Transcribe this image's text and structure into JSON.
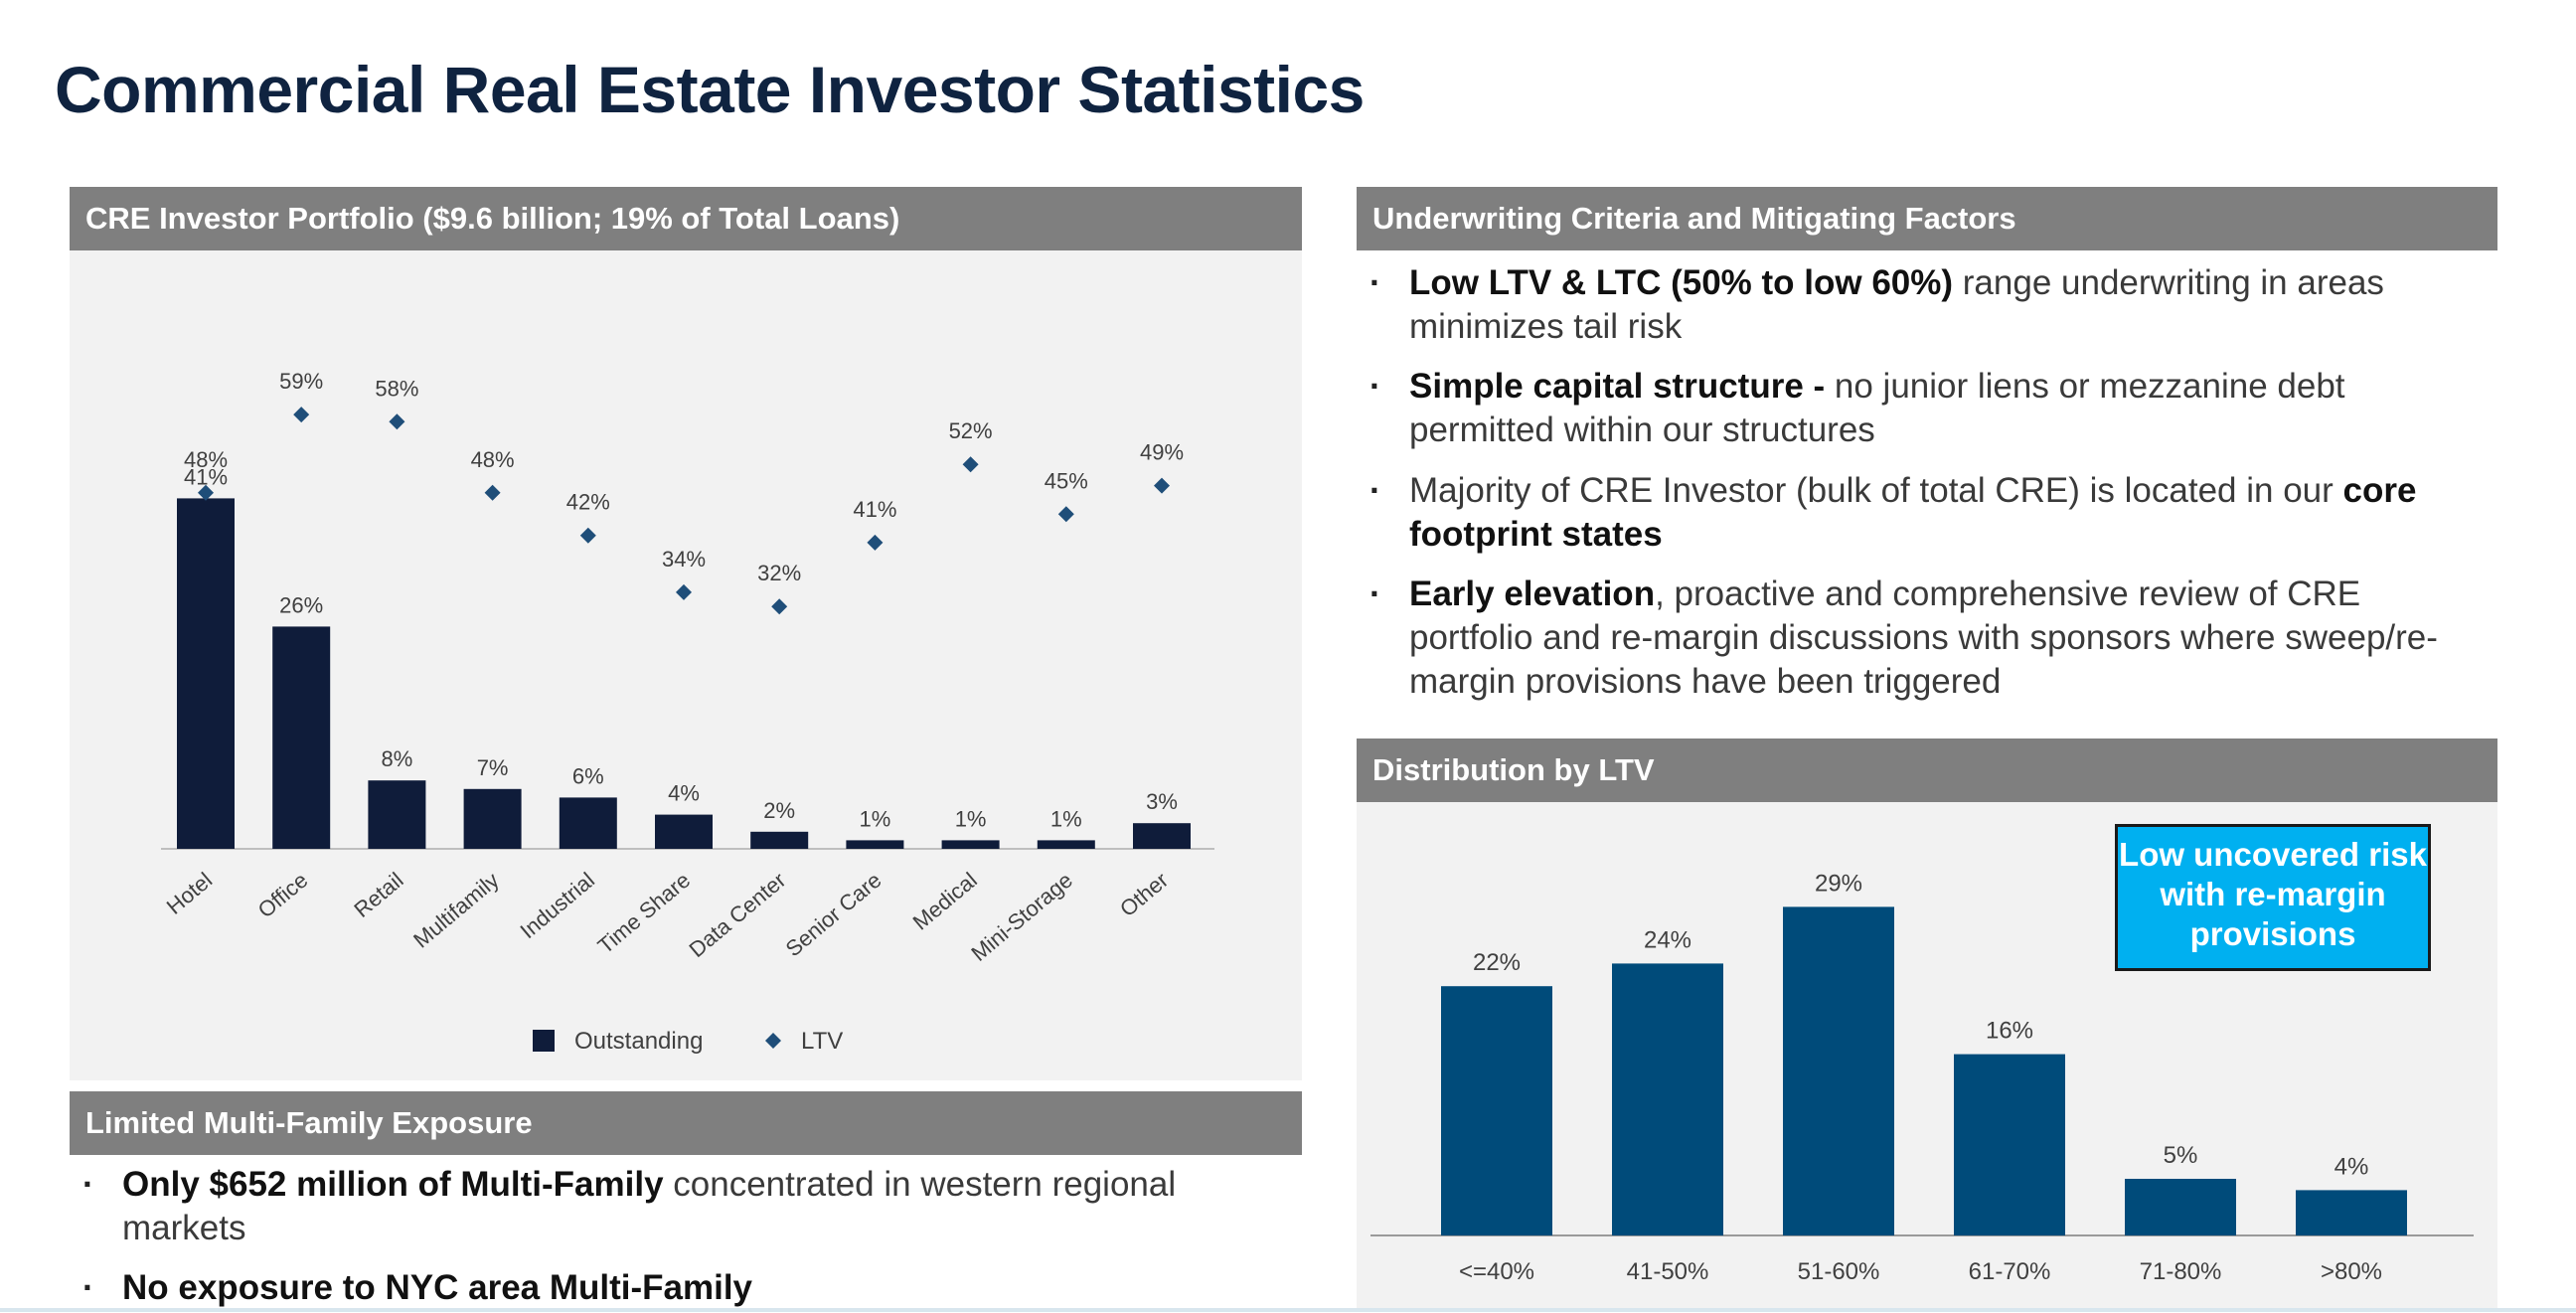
{
  "title": "Commercial Real Estate Investor Statistics",
  "portfolio": {
    "header": "CRE Investor Portfolio ($9.6 billion; 19% of Total Loans)"
  },
  "underwriting": {
    "header": "Underwriting Criteria and Mitigating Factors",
    "bullets": [
      {
        "bold": "Low LTV & LTC (50% to low 60%)",
        "rest": " range underwriting in areas minimizes tail risk"
      },
      {
        "bold": "Simple capital structure -",
        "rest": " no junior liens or mezzanine debt permitted within our structures"
      },
      {
        "pre": "Majority of CRE Investor (bulk of total CRE) is located in our ",
        "bold": "core footprint states"
      },
      {
        "bold": "Early elevation",
        "rest": ", proactive and comprehensive review of CRE portfolio and re-margin discussions with sponsors where sweep/re-margin provisions have been triggered"
      }
    ]
  },
  "multifamily": {
    "header": "Limited Multi-Family Exposure",
    "bullets": [
      {
        "bold": "Only $652 million of Multi-Family",
        "rest": " concentrated in western regional markets"
      },
      {
        "bold": "No exposure to NYC area Multi-Family",
        "rest": ""
      }
    ]
  },
  "distribution": {
    "header": "Distribution by LTV",
    "callout": "Low uncovered risk with re-margin provisions"
  },
  "colors": {
    "navy": "#0f1c3a",
    "blue": "#004b7a",
    "cyan": "#00b0f0",
    "header_gray": "#7f7f7f",
    "panel_gray": "#f2f2f2"
  },
  "chart_data": [
    {
      "type": "bar",
      "categories": [
        "Hotel",
        "Office",
        "Retail",
        "Multifamily",
        "Industrial",
        "Time Share",
        "Data Center",
        "Senior Care",
        "Medical",
        "Mini-Storage",
        "Other"
      ],
      "series": [
        {
          "name": "Outstanding",
          "type": "bar",
          "values": [
            41,
            26,
            8,
            7,
            6,
            4,
            2,
            1,
            1,
            1,
            3
          ],
          "labels": [
            "41%",
            "26%",
            "8%",
            "7%",
            "6%",
            "4%",
            "2%",
            "1%",
            "1%",
            "1%",
            "3%"
          ]
        },
        {
          "name": "LTV",
          "type": "scatter",
          "marker": "diamond",
          "values": [
            48,
            59,
            58,
            48,
            42,
            34,
            32,
            41,
            52,
            45,
            49
          ],
          "labels": [
            "48%",
            "59%",
            "58%",
            "48%",
            "42%",
            "34%",
            "32%",
            "41%",
            "52%",
            "45%",
            "49%"
          ]
        }
      ],
      "legend": "bottom",
      "grid": false
    },
    {
      "type": "bar",
      "categories": [
        "<=40%",
        "41-50%",
        "51-60%",
        "61-70%",
        "71-80%",
        ">80%"
      ],
      "values": [
        22,
        24,
        29,
        16,
        5,
        4
      ],
      "labels": [
        "22%",
        "24%",
        "29%",
        "16%",
        "5%",
        "4%"
      ],
      "grid": false
    }
  ]
}
